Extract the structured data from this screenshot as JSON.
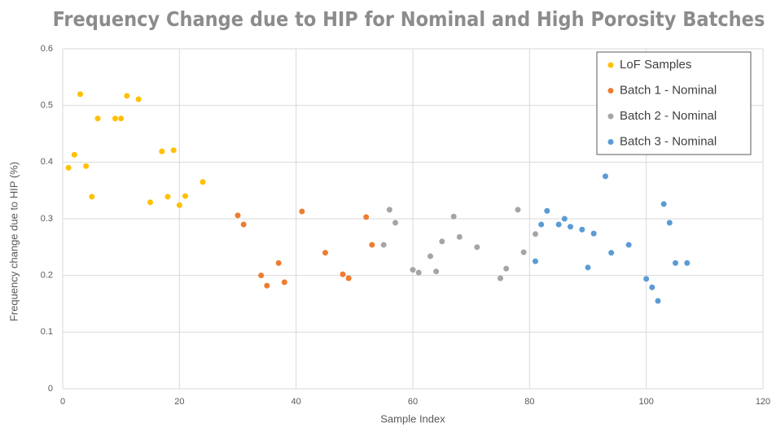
{
  "chart_data": {
    "type": "scatter",
    "title": "Frequency Change due to HIP for Nominal and High Porosity Batches",
    "x_label": "Sample Index",
    "y_label": "Frequency change due to HIP (%)",
    "xlim": [
      0,
      120
    ],
    "xticks": [
      0,
      20,
      40,
      60,
      80,
      100,
      120
    ],
    "ylim": [
      0,
      0.6
    ],
    "yticks": [
      0,
      0.1,
      0.2,
      0.3,
      0.4,
      0.5,
      0.6
    ],
    "grid": true,
    "legend": "top-right",
    "series": [
      {
        "name": "LoF Samples",
        "color": "#ffc000",
        "x": [
          1,
          2,
          3,
          4,
          5,
          6,
          9,
          10,
          11,
          13,
          15,
          17,
          18,
          19,
          20,
          21,
          24
        ],
        "values": [
          0.39,
          0.413,
          0.52,
          0.393,
          0.339,
          0.477,
          0.477,
          0.477,
          0.517,
          0.511,
          0.329,
          0.419,
          0.339,
          0.421,
          0.324,
          0.34,
          0.365
        ]
      },
      {
        "name": "Batch 1 - Nominal",
        "color": "#ed7d31",
        "x": [
          30,
          31,
          34,
          35,
          37,
          38,
          41,
          45,
          48,
          49,
          52,
          53
        ],
        "values": [
          0.306,
          0.29,
          0.2,
          0.182,
          0.222,
          0.188,
          0.313,
          0.24,
          0.202,
          0.195,
          0.303,
          0.254
        ]
      },
      {
        "name": "Batch 2 - Nominal",
        "color": "#a5a5a5",
        "x": [
          55,
          56,
          57,
          60,
          61,
          63,
          64,
          65,
          67,
          68,
          71,
          75,
          76,
          78,
          79,
          81
        ],
        "values": [
          0.254,
          0.316,
          0.293,
          0.21,
          0.205,
          0.234,
          0.207,
          0.26,
          0.304,
          0.268,
          0.25,
          0.195,
          0.212,
          0.316,
          0.241,
          0.273
        ]
      },
      {
        "name": "Batch 3 - Nominal",
        "color": "#5b9bd5",
        "x": [
          81,
          82,
          83,
          85,
          86,
          87,
          89,
          90,
          91,
          93,
          94,
          97,
          100,
          101,
          102,
          103,
          104,
          105,
          107
        ],
        "values": [
          0.225,
          0.29,
          0.314,
          0.29,
          0.3,
          0.286,
          0.281,
          0.214,
          0.274,
          0.375,
          0.24,
          0.254,
          0.194,
          0.179,
          0.155,
          0.326,
          0.293,
          0.222,
          0.222
        ]
      }
    ]
  }
}
